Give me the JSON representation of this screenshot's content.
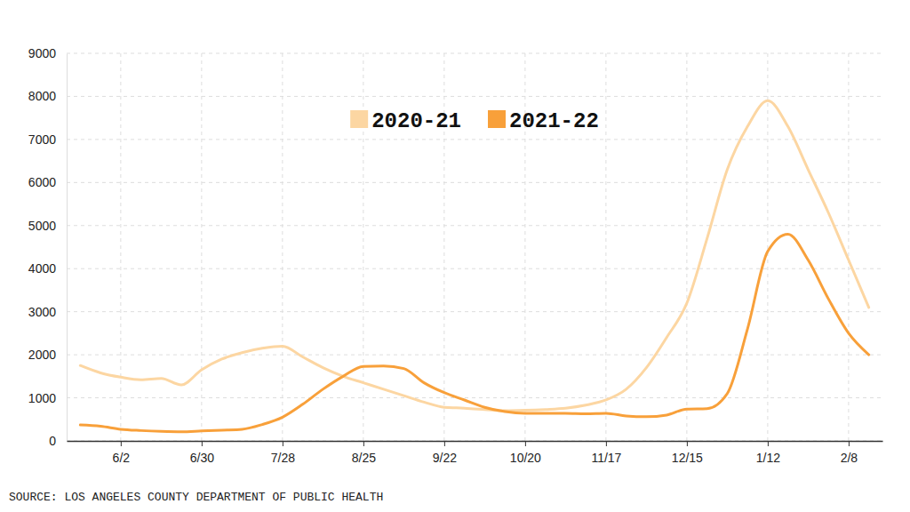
{
  "chart_data": {
    "type": "line",
    "source": "SOURCE: LOS ANGELES COUNTY DEPARTMENT OF PUBLIC HEALTH",
    "categories": [
      null,
      null,
      "6/2",
      null,
      null,
      null,
      "6/30",
      null,
      null,
      null,
      "7/28",
      null,
      null,
      null,
      "8/25",
      null,
      null,
      null,
      "9/22",
      null,
      null,
      null,
      "10/20",
      null,
      null,
      null,
      "11/17",
      null,
      null,
      null,
      "12/15",
      null,
      null,
      null,
      "1/12",
      null,
      null,
      null,
      "2/8",
      null
    ],
    "series": [
      {
        "name": "2020-21",
        "color": "#fcd6a2",
        "values": [
          1750,
          1580,
          1480,
          1420,
          1450,
          1300,
          1650,
          1900,
          2050,
          2150,
          2200,
          1950,
          1700,
          1500,
          1350,
          1200,
          1050,
          900,
          780,
          760,
          730,
          700,
          710,
          730,
          760,
          830,
          950,
          1200,
          1700,
          2400,
          3200,
          4700,
          6300,
          7300,
          7900,
          7300,
          6300,
          5300,
          4200,
          3100
        ]
      },
      {
        "name": "2021-22",
        "color": "#f8a03a",
        "values": [
          370,
          340,
          270,
          240,
          220,
          210,
          230,
          250,
          270,
          380,
          550,
          850,
          1200,
          1500,
          1730,
          1740,
          1680,
          1350,
          1120,
          950,
          780,
          680,
          640,
          640,
          640,
          630,
          640,
          580,
          560,
          600,
          740,
          750,
          1100,
          2600,
          4400,
          4800,
          4200,
          3300,
          2500,
          2000
        ]
      }
    ],
    "ylim": [
      0,
      9000
    ],
    "yticks": [
      0,
      1000,
      2000,
      3000,
      4000,
      5000,
      6000,
      7000,
      8000,
      9000
    ],
    "grid": true,
    "legend": "top"
  }
}
